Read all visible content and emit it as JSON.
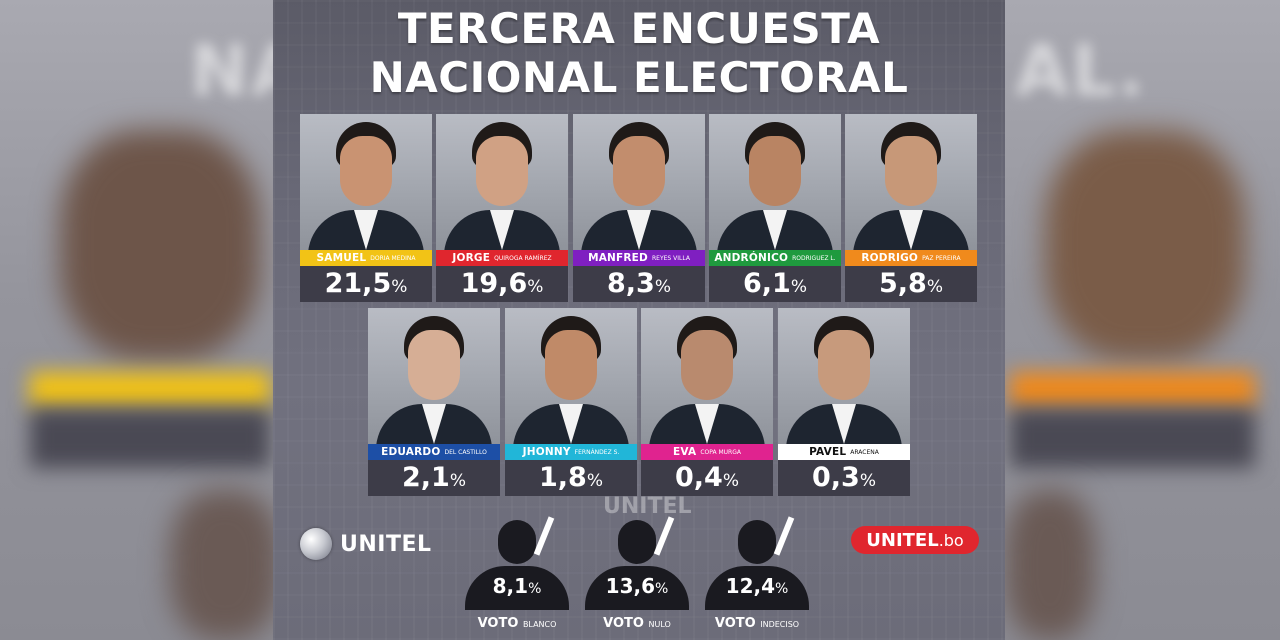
{
  "title_line1": "TERCERA ENCUESTA",
  "title_line2": "NACIONAL ELECTORAL",
  "watermark": "UNITEL",
  "logos": {
    "left": "UNITEL",
    "right_bold": "UNITEL",
    "right_suffix": ".bo"
  },
  "colors": {
    "panel": "#686876",
    "value_box": "#3d3c48",
    "brand_red": "#e0262e"
  },
  "chart_data": {
    "type": "table",
    "title": "TERCERA ENCUESTA NACIONAL ELECTORAL",
    "unit": "%",
    "candidates": [
      {
        "first": "SAMUEL",
        "last": "DORIA MEDINA",
        "value": "21,5",
        "color": "#f2c316",
        "dark_text": false
      },
      {
        "first": "JORGE",
        "last": "QUIROGA RAMÍREZ",
        "value": "19,6",
        "color": "#e0262e",
        "dark_text": false
      },
      {
        "first": "MANFRED",
        "last": "REYES VILLA",
        "value": "8,3",
        "color": "#7f1fc1",
        "dark_text": false
      },
      {
        "first": "ANDRÓNICO",
        "last": "RODRIGUEZ L.",
        "value": "6,1",
        "color": "#1f9a3e",
        "dark_text": false
      },
      {
        "first": "RODRIGO",
        "last": "PAZ PEREIRA",
        "value": "5,8",
        "color": "#f08a1c",
        "dark_text": false
      },
      {
        "first": "EDUARDO",
        "last": "DEL CASTILLO",
        "value": "2,1",
        "color": "#1d4fa6",
        "dark_text": false
      },
      {
        "first": "JHONNY",
        "last": "FERNÁNDEZ S.",
        "value": "1,8",
        "color": "#21b6d8",
        "dark_text": false
      },
      {
        "first": "EVA",
        "last": "COPA MURGA",
        "value": "0,4",
        "color": "#e0238f",
        "dark_text": false
      },
      {
        "first": "PAVEL",
        "last": "ARACENA",
        "value": "0,3",
        "color": "#ffffff",
        "dark_text": true
      }
    ],
    "other_votes": [
      {
        "label_bold": "VOTO",
        "label_small": "BLANCO",
        "value": "8,1"
      },
      {
        "label_bold": "VOTO",
        "label_small": "NULO",
        "value": "13,6"
      },
      {
        "label_bold": "VOTO",
        "label_small": "INDECISO",
        "value": "12,4"
      }
    ]
  }
}
